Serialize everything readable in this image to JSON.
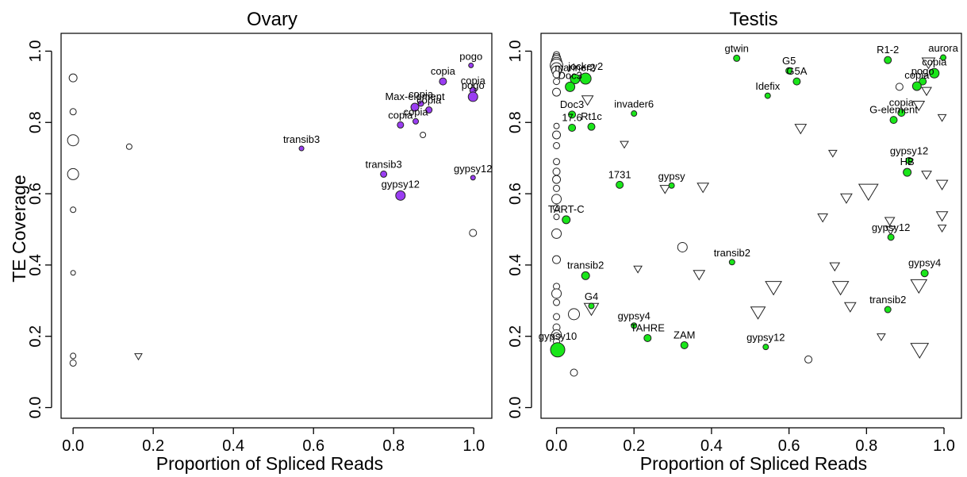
{
  "colors": {
    "ovary_active": "#9a3df2",
    "testis_active": "#19e619",
    "inactive": "#ffffff",
    "stroke": "#222222"
  },
  "chart_data": [
    {
      "type": "scatter",
      "title": "Ovary",
      "xlabel": "Proportion of Spliced Reads",
      "ylabel": "TE Coverage",
      "xlim": [
        -0.03,
        1.045
      ],
      "ylim": [
        -0.03,
        1.05
      ],
      "xticks": [
        "0.0",
        "0.2",
        "0.4",
        "0.6",
        "0.8",
        "1.0"
      ],
      "yticks": [
        "0.0",
        "0.2",
        "0.4",
        "0.6",
        "0.8",
        "1.0"
      ],
      "grid": false,
      "points": [
        {
          "x": 0.0,
          "y": 0.925,
          "shape": "circle",
          "filled": false,
          "size": 5
        },
        {
          "x": 0.0,
          "y": 0.83,
          "shape": "circle",
          "filled": false,
          "size": 4
        },
        {
          "x": 0.0,
          "y": 0.75,
          "shape": "circle",
          "filled": false,
          "size": 7
        },
        {
          "x": 0.0,
          "y": 0.655,
          "shape": "circle",
          "filled": false,
          "size": 7
        },
        {
          "x": 0.0,
          "y": 0.555,
          "shape": "circle",
          "filled": false,
          "size": 3.5
        },
        {
          "x": 0.0,
          "y": 0.378,
          "shape": "circle",
          "filled": false,
          "size": 3
        },
        {
          "x": 0.0,
          "y": 0.145,
          "shape": "circle",
          "filled": false,
          "size": 3.5
        },
        {
          "x": 0.0,
          "y": 0.125,
          "shape": "circle",
          "filled": false,
          "size": 4
        },
        {
          "x": 0.14,
          "y": 0.732,
          "shape": "circle",
          "filled": false,
          "size": 3.5
        },
        {
          "x": 0.163,
          "y": 0.145,
          "shape": "triangle",
          "filled": false,
          "size": 4.5
        },
        {
          "x": 0.873,
          "y": 0.765,
          "shape": "circle",
          "filled": false,
          "size": 3.5
        },
        {
          "x": 0.998,
          "y": 0.49,
          "shape": "circle",
          "filled": false,
          "size": 4.5
        },
        {
          "x": 0.57,
          "y": 0.727,
          "shape": "circle",
          "filled": true,
          "size": 3,
          "label": "transib3"
        },
        {
          "x": 0.775,
          "y": 0.655,
          "shape": "circle",
          "filled": true,
          "size": 4,
          "label": "transib3"
        },
        {
          "x": 0.817,
          "y": 0.595,
          "shape": "circle",
          "filled": true,
          "size": 6,
          "label": "gypsy12"
        },
        {
          "x": 0.998,
          "y": 0.645,
          "shape": "circle",
          "filled": true,
          "size": 3,
          "label": "gypsy12"
        },
        {
          "x": 0.817,
          "y": 0.793,
          "shape": "circle",
          "filled": true,
          "size": 4,
          "label": "copia"
        },
        {
          "x": 0.855,
          "y": 0.803,
          "shape": "circle",
          "filled": true,
          "size": 3.5,
          "label": "copia"
        },
        {
          "x": 0.853,
          "y": 0.843,
          "shape": "circle",
          "filled": true,
          "size": 5,
          "label": "Max-element"
        },
        {
          "x": 0.868,
          "y": 0.853,
          "shape": "circle",
          "filled": true,
          "size": 3.5,
          "label": "copia"
        },
        {
          "x": 0.888,
          "y": 0.835,
          "shape": "circle",
          "filled": true,
          "size": 4,
          "label": "copia"
        },
        {
          "x": 0.923,
          "y": 0.915,
          "shape": "circle",
          "filled": true,
          "size": 4.5,
          "label": "copia"
        },
        {
          "x": 0.998,
          "y": 0.89,
          "shape": "circle",
          "filled": true,
          "size": 4,
          "label": "copia"
        },
        {
          "x": 0.998,
          "y": 0.872,
          "shape": "circle",
          "filled": true,
          "size": 6,
          "label": "pogo"
        },
        {
          "x": 0.993,
          "y": 0.96,
          "shape": "circle",
          "filled": true,
          "size": 3,
          "label": "pogo"
        }
      ]
    },
    {
      "type": "scatter",
      "title": "Testis",
      "xlabel": "Proportion of Spliced Reads",
      "ylabel": "",
      "xlim": [
        -0.04,
        1.045
      ],
      "ylim": [
        -0.03,
        1.05
      ],
      "xticks": [
        "0.0",
        "0.2",
        "0.4",
        "0.6",
        "0.8",
        "1.0"
      ],
      "yticks": [
        "0.0",
        "0.2",
        "0.4",
        "0.6",
        "0.8",
        "1.0"
      ],
      "grid": false,
      "points": [
        {
          "x": 0.0,
          "y": 0.99,
          "shape": "circle",
          "filled": false,
          "size": 4
        },
        {
          "x": 0.0,
          "y": 0.982,
          "shape": "circle",
          "filled": false,
          "size": 5
        },
        {
          "x": 0.0,
          "y": 0.975,
          "shape": "circle",
          "filled": false,
          "size": 6
        },
        {
          "x": 0.0,
          "y": 0.967,
          "shape": "circle",
          "filled": false,
          "size": 7
        },
        {
          "x": 0.0,
          "y": 0.96,
          "shape": "circle",
          "filled": false,
          "size": 8
        },
        {
          "x": 0.0,
          "y": 0.952,
          "shape": "circle",
          "filled": false,
          "size": 7
        },
        {
          "x": 0.0,
          "y": 0.945,
          "shape": "circle",
          "filled": false,
          "size": 6
        },
        {
          "x": 0.0,
          "y": 0.935,
          "shape": "circle",
          "filled": false,
          "size": 4.5
        },
        {
          "x": 0.0,
          "y": 0.915,
          "shape": "circle",
          "filled": false,
          "size": 4
        },
        {
          "x": 0.0,
          "y": 0.885,
          "shape": "circle",
          "filled": false,
          "size": 5
        },
        {
          "x": 0.0,
          "y": 0.79,
          "shape": "circle",
          "filled": false,
          "size": 3.5
        },
        {
          "x": 0.0,
          "y": 0.765,
          "shape": "circle",
          "filled": false,
          "size": 5
        },
        {
          "x": 0.0,
          "y": 0.735,
          "shape": "circle",
          "filled": false,
          "size": 4
        },
        {
          "x": 0.0,
          "y": 0.69,
          "shape": "circle",
          "filled": false,
          "size": 4
        },
        {
          "x": 0.0,
          "y": 0.662,
          "shape": "circle",
          "filled": false,
          "size": 4.5
        },
        {
          "x": 0.0,
          "y": 0.64,
          "shape": "circle",
          "filled": false,
          "size": 5
        },
        {
          "x": 0.0,
          "y": 0.615,
          "shape": "circle",
          "filled": false,
          "size": 4
        },
        {
          "x": 0.0,
          "y": 0.585,
          "shape": "circle",
          "filled": false,
          "size": 6
        },
        {
          "x": 0.0,
          "y": 0.56,
          "shape": "circle",
          "filled": false,
          "size": 4
        },
        {
          "x": 0.0,
          "y": 0.535,
          "shape": "circle",
          "filled": false,
          "size": 3.5
        },
        {
          "x": 0.0,
          "y": 0.488,
          "shape": "circle",
          "filled": false,
          "size": 6
        },
        {
          "x": 0.0,
          "y": 0.415,
          "shape": "circle",
          "filled": false,
          "size": 5
        },
        {
          "x": 0.0,
          "y": 0.34,
          "shape": "circle",
          "filled": false,
          "size": 4
        },
        {
          "x": 0.0,
          "y": 0.32,
          "shape": "circle",
          "filled": false,
          "size": 6
        },
        {
          "x": 0.0,
          "y": 0.295,
          "shape": "circle",
          "filled": false,
          "size": 4
        },
        {
          "x": 0.0,
          "y": 0.255,
          "shape": "circle",
          "filled": false,
          "size": 4
        },
        {
          "x": 0.0,
          "y": 0.225,
          "shape": "circle",
          "filled": false,
          "size": 4.5
        },
        {
          "x": 0.0,
          "y": 0.205,
          "shape": "circle",
          "filled": false,
          "size": 6
        },
        {
          "x": 0.0,
          "y": 0.2,
          "shape": "circle",
          "filled": false,
          "size": 4.5
        },
        {
          "x": 0.0,
          "y": 0.185,
          "shape": "circle",
          "filled": false,
          "size": 4
        },
        {
          "x": 0.045,
          "y": 0.098,
          "shape": "circle",
          "filled": false,
          "size": 4.5
        },
        {
          "x": 0.045,
          "y": 0.262,
          "shape": "circle",
          "filled": false,
          "size": 7
        },
        {
          "x": 0.325,
          "y": 0.45,
          "shape": "circle",
          "filled": false,
          "size": 6
        },
        {
          "x": 0.65,
          "y": 0.135,
          "shape": "circle",
          "filled": false,
          "size": 4.5
        },
        {
          "x": 0.885,
          "y": 0.9,
          "shape": "circle",
          "filled": false,
          "size": 4.5
        },
        {
          "x": 0.08,
          "y": 0.865,
          "shape": "triangle",
          "filled": false,
          "size": 7
        },
        {
          "x": 0.09,
          "y": 0.28,
          "shape": "triangle",
          "filled": false,
          "size": 9
        },
        {
          "x": 0.175,
          "y": 0.74,
          "shape": "triangle",
          "filled": false,
          "size": 5
        },
        {
          "x": 0.21,
          "y": 0.39,
          "shape": "triangle",
          "filled": false,
          "size": 5
        },
        {
          "x": 0.28,
          "y": 0.615,
          "shape": "triangle",
          "filled": false,
          "size": 6
        },
        {
          "x": 0.368,
          "y": 0.375,
          "shape": "triangle",
          "filled": false,
          "size": 7
        },
        {
          "x": 0.378,
          "y": 0.62,
          "shape": "triangle",
          "filled": false,
          "size": 7
        },
        {
          "x": 0.52,
          "y": 0.27,
          "shape": "triangle",
          "filled": false,
          "size": 9
        },
        {
          "x": 0.56,
          "y": 0.34,
          "shape": "triangle",
          "filled": false,
          "size": 10
        },
        {
          "x": 0.63,
          "y": 0.785,
          "shape": "triangle",
          "filled": false,
          "size": 7
        },
        {
          "x": 0.687,
          "y": 0.535,
          "shape": "triangle",
          "filled": false,
          "size": 6
        },
        {
          "x": 0.713,
          "y": 0.715,
          "shape": "triangle",
          "filled": false,
          "size": 5
        },
        {
          "x": 0.718,
          "y": 0.398,
          "shape": "triangle",
          "filled": false,
          "size": 6
        },
        {
          "x": 0.733,
          "y": 0.34,
          "shape": "triangle",
          "filled": false,
          "size": 10
        },
        {
          "x": 0.748,
          "y": 0.59,
          "shape": "triangle",
          "filled": false,
          "size": 7
        },
        {
          "x": 0.758,
          "y": 0.285,
          "shape": "triangle",
          "filled": false,
          "size": 7
        },
        {
          "x": 0.805,
          "y": 0.61,
          "shape": "triangle",
          "filled": false,
          "size": 12
        },
        {
          "x": 0.838,
          "y": 0.2,
          "shape": "triangle",
          "filled": false,
          "size": 5
        },
        {
          "x": 0.86,
          "y": 0.525,
          "shape": "triangle",
          "filled": false,
          "size": 6
        },
        {
          "x": 0.862,
          "y": 0.5,
          "shape": "triangle",
          "filled": false,
          "size": 6
        },
        {
          "x": 0.935,
          "y": 0.85,
          "shape": "triangle",
          "filled": false,
          "size": 7
        },
        {
          "x": 0.935,
          "y": 0.345,
          "shape": "triangle",
          "filled": false,
          "size": 10
        },
        {
          "x": 0.937,
          "y": 0.165,
          "shape": "triangle",
          "filled": false,
          "size": 11
        },
        {
          "x": 0.955,
          "y": 0.89,
          "shape": "triangle",
          "filled": false,
          "size": 6
        },
        {
          "x": 0.955,
          "y": 0.655,
          "shape": "triangle",
          "filled": false,
          "size": 6
        },
        {
          "x": 0.96,
          "y": 0.97,
          "shape": "triangle",
          "filled": false,
          "size": 8
        },
        {
          "x": 0.995,
          "y": 0.815,
          "shape": "triangle",
          "filled": false,
          "size": 5
        },
        {
          "x": 0.995,
          "y": 0.628,
          "shape": "triangle",
          "filled": false,
          "size": 7
        },
        {
          "x": 0.995,
          "y": 0.54,
          "shape": "triangle",
          "filled": false,
          "size": 7
        },
        {
          "x": 0.995,
          "y": 0.505,
          "shape": "triangle",
          "filled": false,
          "size": 5
        },
        {
          "x": 0.003,
          "y": 0.162,
          "shape": "circle",
          "filled": true,
          "size": 9,
          "label": "gypsy10"
        },
        {
          "x": 0.048,
          "y": 0.922,
          "shape": "circle",
          "filled": true,
          "size": 6,
          "label": "mariner2"
        },
        {
          "x": 0.035,
          "y": 0.9,
          "shape": "circle",
          "filled": true,
          "size": 6,
          "label": "Doc3"
        },
        {
          "x": 0.075,
          "y": 0.923,
          "shape": "circle",
          "filled": true,
          "size": 7,
          "label": "jockey2"
        },
        {
          "x": 0.04,
          "y": 0.822,
          "shape": "circle",
          "filled": true,
          "size": 4.5,
          "label": "Doc3"
        },
        {
          "x": 0.04,
          "y": 0.785,
          "shape": "circle",
          "filled": true,
          "size": 4.5,
          "label": "17.6"
        },
        {
          "x": 0.09,
          "y": 0.788,
          "shape": "circle",
          "filled": true,
          "size": 4.5,
          "label": "Rt1c"
        },
        {
          "x": 0.2,
          "y": 0.825,
          "shape": "circle",
          "filled": true,
          "size": 3.5,
          "label": "invader6"
        },
        {
          "x": 0.465,
          "y": 0.98,
          "shape": "circle",
          "filled": true,
          "size": 4,
          "label": "gtwin"
        },
        {
          "x": 0.6,
          "y": 0.945,
          "shape": "circle",
          "filled": true,
          "size": 4,
          "label": "G5"
        },
        {
          "x": 0.62,
          "y": 0.915,
          "shape": "circle",
          "filled": true,
          "size": 4.5,
          "label": "G5A"
        },
        {
          "x": 0.545,
          "y": 0.875,
          "shape": "circle",
          "filled": true,
          "size": 3.5,
          "label": "Idefix"
        },
        {
          "x": 0.855,
          "y": 0.975,
          "shape": "circle",
          "filled": true,
          "size": 4.5,
          "label": "R1-2"
        },
        {
          "x": 0.998,
          "y": 0.982,
          "shape": "circle",
          "filled": true,
          "size": 3.5,
          "label": "aurora"
        },
        {
          "x": 0.945,
          "y": 0.915,
          "shape": "circle",
          "filled": true,
          "size": 4.5,
          "label": "pogo"
        },
        {
          "x": 0.975,
          "y": 0.938,
          "shape": "circle",
          "filled": true,
          "size": 6,
          "label": "copia"
        },
        {
          "x": 0.93,
          "y": 0.902,
          "shape": "circle",
          "filled": true,
          "size": 5.5,
          "label": "copia"
        },
        {
          "x": 0.89,
          "y": 0.827,
          "shape": "circle",
          "filled": true,
          "size": 4.5,
          "label": "copia"
        },
        {
          "x": 0.87,
          "y": 0.807,
          "shape": "circle",
          "filled": true,
          "size": 4.5,
          "label": "G-element"
        },
        {
          "x": 0.91,
          "y": 0.693,
          "shape": "circle",
          "filled": true,
          "size": 4,
          "label": "gypsy12"
        },
        {
          "x": 0.905,
          "y": 0.66,
          "shape": "circle",
          "filled": true,
          "size": 5,
          "label": "HB"
        },
        {
          "x": 0.163,
          "y": 0.625,
          "shape": "circle",
          "filled": true,
          "size": 4.5,
          "label": "1731"
        },
        {
          "x": 0.297,
          "y": 0.623,
          "shape": "circle",
          "filled": true,
          "size": 3.5,
          "label": "gypsy"
        },
        {
          "x": 0.025,
          "y": 0.527,
          "shape": "circle",
          "filled": true,
          "size": 5,
          "label": "TART-C"
        },
        {
          "x": 0.863,
          "y": 0.478,
          "shape": "circle",
          "filled": true,
          "size": 4,
          "label": "gypsy12"
        },
        {
          "x": 0.075,
          "y": 0.37,
          "shape": "circle",
          "filled": true,
          "size": 5,
          "label": "transib2"
        },
        {
          "x": 0.453,
          "y": 0.408,
          "shape": "circle",
          "filled": true,
          "size": 3.5,
          "label": "transib2"
        },
        {
          "x": 0.09,
          "y": 0.285,
          "shape": "circle",
          "filled": true,
          "size": 3.5,
          "label": "G4"
        },
        {
          "x": 0.2,
          "y": 0.23,
          "shape": "circle",
          "filled": true,
          "size": 3.5,
          "label": "gypsy4"
        },
        {
          "x": 0.235,
          "y": 0.195,
          "shape": "circle",
          "filled": true,
          "size": 4.5,
          "label": "TAHRE"
        },
        {
          "x": 0.33,
          "y": 0.175,
          "shape": "circle",
          "filled": true,
          "size": 4.5,
          "label": "ZAM"
        },
        {
          "x": 0.54,
          "y": 0.17,
          "shape": "circle",
          "filled": true,
          "size": 3.5,
          "label": "gypsy12"
        },
        {
          "x": 0.855,
          "y": 0.275,
          "shape": "circle",
          "filled": true,
          "size": 4,
          "label": "transib2"
        },
        {
          "x": 0.95,
          "y": 0.377,
          "shape": "circle",
          "filled": true,
          "size": 4.5,
          "label": "gypsy4"
        }
      ]
    }
  ]
}
